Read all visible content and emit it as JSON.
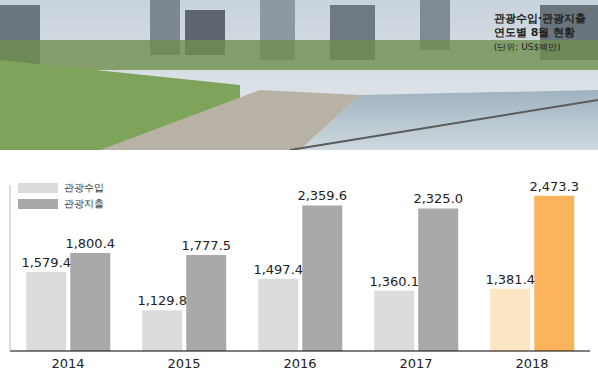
{
  "chart_data": {
    "type": "bar",
    "title": "관광수입·관광지출 연도별 8월 현황",
    "subtitle": "(단위: US$백만)",
    "categories": [
      "2014",
      "2015",
      "2016",
      "2017",
      "2018"
    ],
    "series": [
      {
        "name": "관광수입",
        "color": "#dcdcdc",
        "colors": [
          "#dcdcdc",
          "#dcdcdc",
          "#dcdcdc",
          "#dcdcdc",
          "#fde6c4"
        ],
        "values": [
          1579.4,
          1129.8,
          1497.4,
          1360.1,
          1381.4
        ],
        "value_labels": [
          "1,579.4",
          "1,129.8",
          "1,497.4",
          "1,360.1",
          "1,381.4"
        ]
      },
      {
        "name": "관광지출",
        "color": "#a9a9a9",
        "colors": [
          "#a9a9a9",
          "#a9a9a9",
          "#a9a9a9",
          "#a9a9a9",
          "#fbb45c"
        ],
        "values": [
          1800.4,
          1777.5,
          2359.6,
          2325.0,
          2473.3
        ],
        "value_labels": [
          "1,800.4",
          "1,777.5",
          "2,359.6",
          "2,325.0",
          "2,473.3"
        ]
      }
    ],
    "ylim": [
      650,
      2600
    ],
    "tick_labels": "x",
    "data_labels": true,
    "legend": "upper left"
  }
}
